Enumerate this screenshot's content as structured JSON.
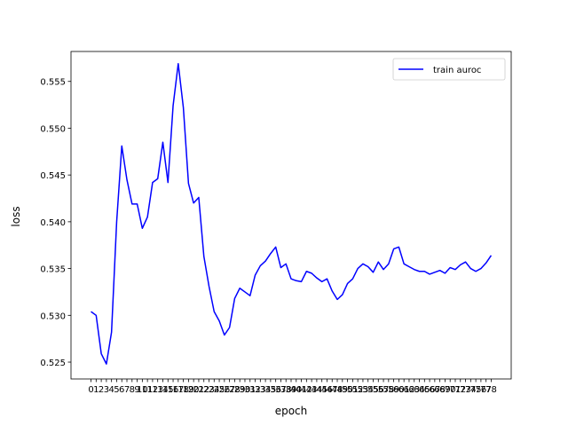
{
  "chart_data": {
    "type": "line",
    "xlabel": "epoch",
    "ylabel": "loss",
    "x": [
      0,
      1,
      2,
      3,
      4,
      5,
      6,
      7,
      8,
      9,
      10,
      11,
      12,
      13,
      14,
      15,
      16,
      17,
      18,
      19,
      20,
      21,
      22,
      23,
      24,
      25,
      26,
      27,
      28,
      29,
      30,
      31,
      32,
      33,
      34,
      35,
      36,
      37,
      38,
      39,
      40,
      41,
      42,
      43,
      44,
      45,
      46,
      47,
      48,
      49,
      50,
      51,
      52,
      53,
      54,
      55,
      56,
      57,
      58,
      59,
      60,
      61,
      62,
      63,
      64,
      65,
      66,
      67,
      68,
      69,
      70,
      71,
      72,
      73,
      74,
      75,
      76,
      77,
      78
    ],
    "xticks": [
      0,
      1,
      2,
      3,
      4,
      5,
      6,
      7,
      8,
      9,
      10,
      11,
      12,
      13,
      14,
      15,
      16,
      17,
      18,
      19,
      20,
      21,
      22,
      23,
      24,
      25,
      26,
      27,
      28,
      29,
      30,
      31,
      32,
      33,
      34,
      35,
      36,
      37,
      38,
      39,
      40,
      41,
      42,
      43,
      44,
      45,
      46,
      47,
      48,
      49,
      50,
      51,
      52,
      53,
      54,
      55,
      56,
      57,
      58,
      59,
      60,
      61,
      62,
      63,
      64,
      65,
      66,
      67,
      68,
      69,
      70,
      71,
      72,
      73,
      74,
      75,
      76,
      77,
      78
    ],
    "ylim": [
      0.5232,
      0.5582
    ],
    "yticks": [
      0.525,
      0.53,
      0.535,
      0.54,
      0.545,
      0.55,
      0.555
    ],
    "ytick_labels": [
      "0.525",
      "0.530",
      "0.535",
      "0.540",
      "0.545",
      "0.550",
      "0.555"
    ],
    "legend_position": "top-right",
    "series": [
      {
        "name": "train auroc",
        "color": "#0000ff",
        "values": [
          0.5304,
          0.53,
          0.5259,
          0.5248,
          0.5282,
          0.54,
          0.5481,
          0.5445,
          0.5419,
          0.5419,
          0.5393,
          0.5405,
          0.5442,
          0.5446,
          0.5485,
          0.5442,
          0.5524,
          0.5569,
          0.5522,
          0.5441,
          0.542,
          0.5426,
          0.5363,
          0.5331,
          0.5304,
          0.5294,
          0.5279,
          0.5287,
          0.5318,
          0.5329,
          0.5325,
          0.5321,
          0.5343,
          0.5353,
          0.5358,
          0.5366,
          0.5373,
          0.5351,
          0.5355,
          0.5339,
          0.5337,
          0.5336,
          0.5347,
          0.5345,
          0.534,
          0.5336,
          0.5339,
          0.5326,
          0.5317,
          0.5322,
          0.5334,
          0.5339,
          0.535,
          0.5355,
          0.5352,
          0.5346,
          0.5357,
          0.5349,
          0.5355,
          0.5371,
          0.5373,
          0.5355,
          0.5352,
          0.5349,
          0.5347,
          0.5347,
          0.5344,
          0.5346,
          0.5348,
          0.5345,
          0.5351,
          0.5349,
          0.5354,
          0.5357,
          0.535,
          0.5347,
          0.535,
          0.5356,
          0.5364
        ]
      }
    ]
  }
}
